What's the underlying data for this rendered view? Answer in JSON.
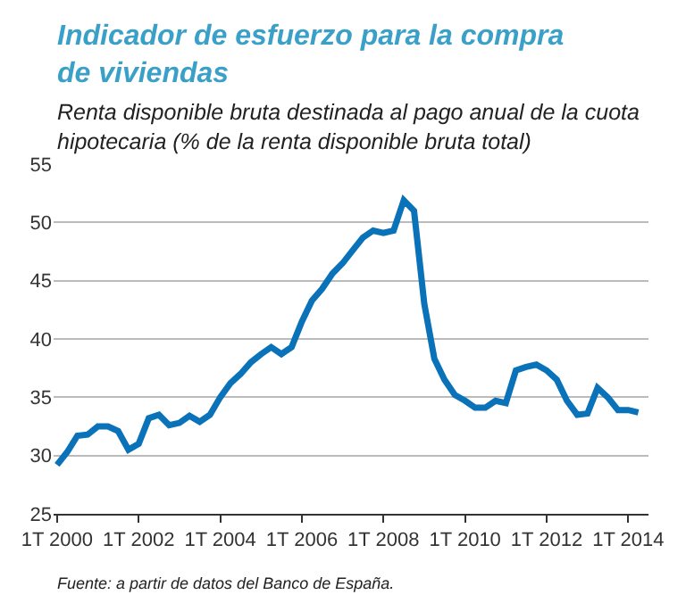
{
  "chart_data": {
    "type": "line",
    "title": "Indicador de esfuerzo para la compra de viviendas",
    "subtitle": "Renta disponible bruta destinada al pago anual de la cuota hipotecaria (% de la renta disponible bruta total)",
    "x": [
      "2000-01",
      "2000-04",
      "2000-07",
      "2000-10",
      "2001-01",
      "2001-04",
      "2001-07",
      "2001-10",
      "2002-01",
      "2002-04",
      "2002-07",
      "2002-10",
      "2003-01",
      "2003-04",
      "2003-07",
      "2003-10",
      "2004-01",
      "2004-04",
      "2004-07",
      "2004-10",
      "2005-01",
      "2005-04",
      "2005-07",
      "2005-10",
      "2006-01",
      "2006-04",
      "2006-07",
      "2006-10",
      "2007-01",
      "2007-04",
      "2007-07",
      "2007-10",
      "2008-01",
      "2008-04",
      "2008-07",
      "2008-10",
      "2009-01",
      "2009-04",
      "2009-07",
      "2009-10",
      "2010-01",
      "2010-04",
      "2010-07",
      "2010-10",
      "2011-01",
      "2011-04",
      "2011-07",
      "2011-10",
      "2012-01",
      "2012-04",
      "2012-07",
      "2012-10",
      "2013-01",
      "2013-04",
      "2013-07",
      "2013-10",
      "2014-01",
      "2014-04"
    ],
    "series": [
      {
        "color": "#0a72b8",
        "values": [
          29.2,
          30.3,
          31.7,
          31.8,
          32.5,
          32.5,
          32.1,
          30.5,
          31.0,
          33.2,
          33.5,
          32.6,
          32.8,
          33.4,
          32.9,
          33.5,
          35.0,
          36.2,
          37.0,
          38.0,
          38.7,
          39.3,
          38.7,
          39.3,
          41.5,
          43.3,
          44.3,
          45.6,
          46.5,
          47.6,
          48.7,
          49.3,
          49.1,
          49.3,
          51.9,
          51.0,
          43.0,
          38.3,
          36.5,
          35.2,
          34.7,
          34.1,
          34.1,
          34.7,
          34.5,
          37.3,
          37.6,
          37.8,
          37.3,
          36.5,
          34.7,
          33.5,
          33.6,
          35.8,
          35.0,
          33.9,
          33.9,
          33.7
        ]
      }
    ],
    "xlim": [
      "1999-12",
      "2014-07"
    ],
    "xticks": [
      {
        "value": "2000-01",
        "label": "1T 2000"
      },
      {
        "value": "2002-01",
        "label": "1T 2002"
      },
      {
        "value": "2004-01",
        "label": "1T 2004"
      },
      {
        "value": "2006-01",
        "label": "1T 2006"
      },
      {
        "value": "2008-01",
        "label": "1T 2008"
      },
      {
        "value": "2010-01",
        "label": "1T 2010"
      },
      {
        "value": "2012-01",
        "label": "1T 2012"
      },
      {
        "value": "2014-01",
        "label": "1T 2014"
      }
    ],
    "ylim": [
      25,
      55
    ],
    "yticks": [
      25,
      30,
      35,
      40,
      45,
      50,
      55
    ],
    "grid": "y",
    "marker": "none",
    "line_style": "solid",
    "annotations": [
      "Fuente: a partir de datos del Banco de España."
    ]
  }
}
